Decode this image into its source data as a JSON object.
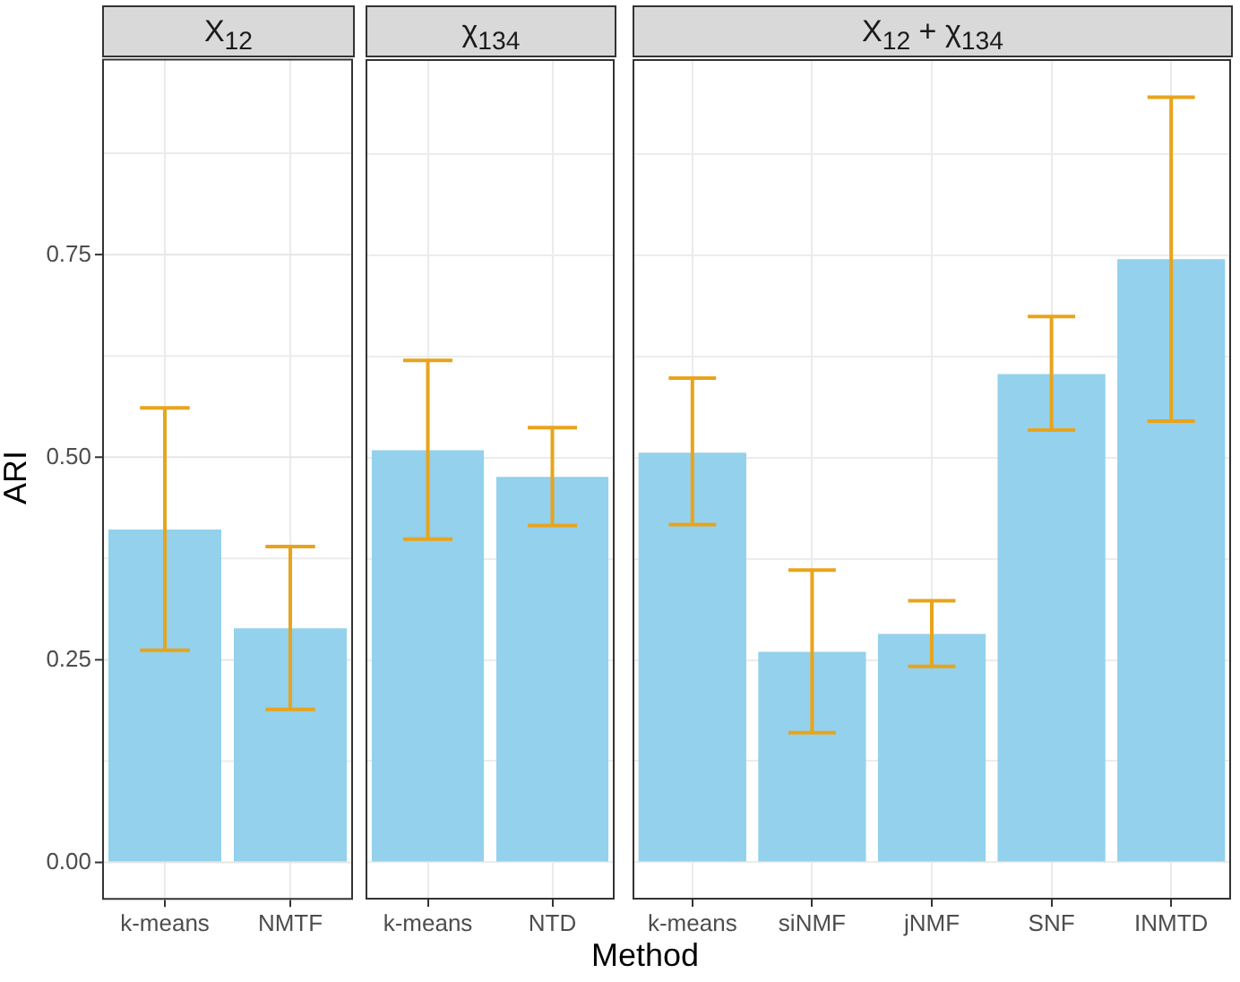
{
  "chart_data": [
    {
      "type": "bar",
      "title": "X$_{12}$",
      "ylabel": "ARI",
      "categories": [
        "k-means",
        "NMTF"
      ],
      "values": [
        0.411,
        0.289
      ],
      "errors": [
        [
          0.262,
          0.561
        ],
        [
          0.189,
          0.39
        ]
      ],
      "color": "#93d1ec",
      "ylim": [
        -0.046,
        0.992
      ],
      "yticks": [
        {
          "value": 0,
          "label": "0.00"
        },
        {
          "value": 0.125,
          "label": null
        },
        {
          "value": 0.25,
          "label": "0.25"
        },
        {
          "value": 0.375,
          "label": null
        },
        {
          "value": 0.5,
          "label": "0.50"
        },
        {
          "value": 0.625,
          "label": null
        },
        {
          "value": 0.75,
          "label": "0.75"
        },
        {
          "value": 0.875,
          "label": null
        }
      ],
      "grid": true
    },
    {
      "type": "bar",
      "title": "χ$_{134}$",
      "xlabel": "Method",
      "categories": [
        "k-means",
        "NTD"
      ],
      "values": [
        0.509,
        0.476
      ],
      "errors": [
        [
          0.399,
          0.62
        ],
        [
          0.416,
          0.537
        ]
      ],
      "color": "#93d1ec",
      "ylim": [
        -0.046,
        0.992
      ],
      "yticks": [
        {
          "value": 0,
          "label": null
        },
        {
          "value": 0.125,
          "label": null
        },
        {
          "value": 0.25,
          "label": null
        },
        {
          "value": 0.375,
          "label": null
        },
        {
          "value": 0.5,
          "label": null
        },
        {
          "value": 0.625,
          "label": null
        },
        {
          "value": 0.75,
          "label": null
        },
        {
          "value": 0.875,
          "label": null
        }
      ],
      "grid": true,
      "tick_labels": "x"
    },
    {
      "type": "bar",
      "title": "X$_{12}$ + χ$_{134}$",
      "categories": [
        "k-means",
        "siNMF",
        "jNMF",
        "SNF",
        "INMTD"
      ],
      "values": [
        0.506,
        0.26,
        0.282,
        0.603,
        0.745
      ],
      "errors": [
        [
          0.417,
          0.598
        ],
        [
          0.16,
          0.361
        ],
        [
          0.242,
          0.323
        ],
        [
          0.534,
          0.674
        ],
        [
          0.545,
          0.945
        ]
      ],
      "color": "#93d1ec",
      "ylim": [
        -0.046,
        0.992
      ],
      "yticks": [
        {
          "value": 0,
          "label": null
        },
        {
          "value": 0.125,
          "label": null
        },
        {
          "value": 0.25,
          "label": null
        },
        {
          "value": 0.375,
          "label": null
        },
        {
          "value": 0.5,
          "label": null
        },
        {
          "value": 0.625,
          "label": null
        },
        {
          "value": 0.75,
          "label": null
        },
        {
          "value": 0.875,
          "label": null
        }
      ],
      "grid": true,
      "tick_labels": "x"
    }
  ]
}
